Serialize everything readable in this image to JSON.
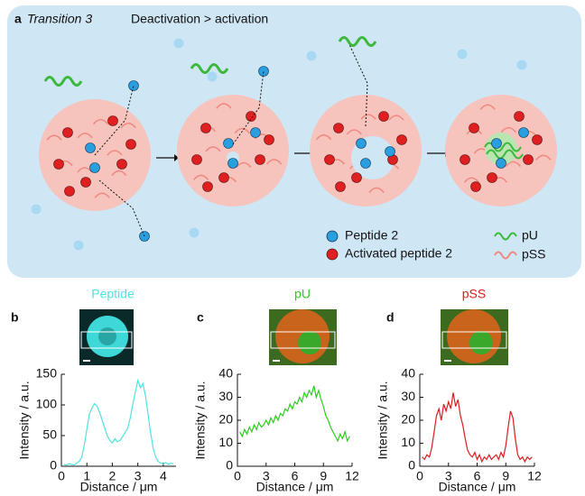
{
  "panel_a": {
    "label": "a",
    "title": "Transition 3",
    "subtitle": "Deactivation > activation",
    "legend": [
      "Peptide 2",
      "Activated peptide 2",
      "pU",
      "pSS"
    ]
  },
  "chart_data": [
    {
      "type": "line",
      "panel": "b",
      "image_title": "Peptide",
      "x_label": "Distance / μm",
      "y_label": "Intensity / a.u.",
      "color": "#4fe3e3",
      "xlim": [
        0,
        4.5
      ],
      "xticks": [
        0,
        1,
        2,
        3,
        4
      ],
      "ylim": [
        0,
        150
      ],
      "yticks": [
        0,
        50,
        100,
        150
      ],
      "x": [
        0.1,
        0.2,
        0.3,
        0.4,
        0.5,
        0.6,
        0.7,
        0.8,
        0.9,
        1.0,
        1.1,
        1.2,
        1.3,
        1.4,
        1.5,
        1.6,
        1.7,
        1.8,
        1.9,
        2.0,
        2.1,
        2.2,
        2.3,
        2.4,
        2.5,
        2.6,
        2.7,
        2.8,
        2.9,
        3.0,
        3.1,
        3.2,
        3.3,
        3.4,
        3.5,
        3.6,
        3.7,
        3.8,
        3.9,
        4.0,
        4.1,
        4.2,
        4.3,
        4.4
      ],
      "values": [
        3,
        2,
        4,
        3,
        2,
        5,
        8,
        15,
        35,
        60,
        85,
        95,
        102,
        98,
        88,
        75,
        62,
        50,
        42,
        38,
        45,
        40,
        42,
        48,
        55,
        62,
        78,
        100,
        120,
        140,
        128,
        135,
        115,
        85,
        55,
        30,
        15,
        8,
        5,
        4,
        6,
        3,
        5,
        4
      ]
    },
    {
      "type": "line",
      "panel": "c",
      "image_title": "pU",
      "x_label": "Distance / μm",
      "y_label": "Intensity / a.u.",
      "color": "#2ecc1f",
      "xlim": [
        0,
        12
      ],
      "xticks": [
        0,
        3,
        6,
        9,
        12
      ],
      "ylim": [
        0,
        40
      ],
      "yticks": [
        0,
        10,
        20,
        30,
        40
      ],
      "x": [
        0.25,
        0.5,
        0.75,
        1,
        1.25,
        1.5,
        1.75,
        2,
        2.25,
        2.5,
        2.75,
        3,
        3.25,
        3.5,
        3.75,
        4,
        4.25,
        4.5,
        4.75,
        5,
        5.25,
        5.5,
        5.75,
        6,
        6.25,
        6.5,
        6.75,
        7,
        7.25,
        7.5,
        7.75,
        8,
        8.25,
        8.5,
        8.75,
        9,
        9.25,
        9.5,
        9.75,
        10,
        10.25,
        10.5,
        10.75,
        11,
        11.25,
        11.5,
        11.75
      ],
      "values": [
        15,
        13,
        16,
        14,
        17,
        15,
        18,
        16,
        19,
        17,
        18,
        20,
        18,
        21,
        19,
        22,
        20,
        23,
        22,
        25,
        24,
        27,
        25,
        28,
        27,
        30,
        28,
        32,
        30,
        33,
        31,
        35,
        30,
        33,
        29,
        26,
        22,
        20,
        17,
        15,
        13,
        11,
        14,
        12,
        15,
        11,
        13
      ]
    },
    {
      "type": "line",
      "panel": "d",
      "image_title": "pSS",
      "x_label": "Distance / μm",
      "y_label": "Intensity / a.u.",
      "color": "#d91e1e",
      "xlim": [
        0,
        12
      ],
      "xticks": [
        0,
        3,
        6,
        9,
        12
      ],
      "ylim": [
        0,
        40
      ],
      "yticks": [
        0,
        10,
        20,
        30,
        40
      ],
      "x": [
        0.25,
        0.5,
        0.75,
        1,
        1.25,
        1.5,
        1.75,
        2,
        2.25,
        2.5,
        2.75,
        3,
        3.25,
        3.5,
        3.75,
        4,
        4.25,
        4.5,
        4.75,
        5,
        5.25,
        5.5,
        5.75,
        6,
        6.25,
        6.5,
        6.75,
        7,
        7.25,
        7.5,
        7.75,
        8,
        8.25,
        8.5,
        8.75,
        9,
        9.25,
        9.5,
        9.75,
        10,
        10.25,
        10.5,
        10.75,
        11,
        11.25,
        11.5,
        11.75
      ],
      "values": [
        4,
        3,
        5,
        4,
        8,
        15,
        22,
        25,
        20,
        27,
        24,
        28,
        25,
        32,
        26,
        29,
        22,
        18,
        12,
        7,
        5,
        4,
        6,
        3,
        5,
        2,
        4,
        3,
        5,
        3,
        4,
        5,
        3,
        6,
        4,
        9,
        17,
        24,
        21,
        12,
        5,
        3,
        4,
        2,
        4,
        3,
        4
      ]
    }
  ]
}
